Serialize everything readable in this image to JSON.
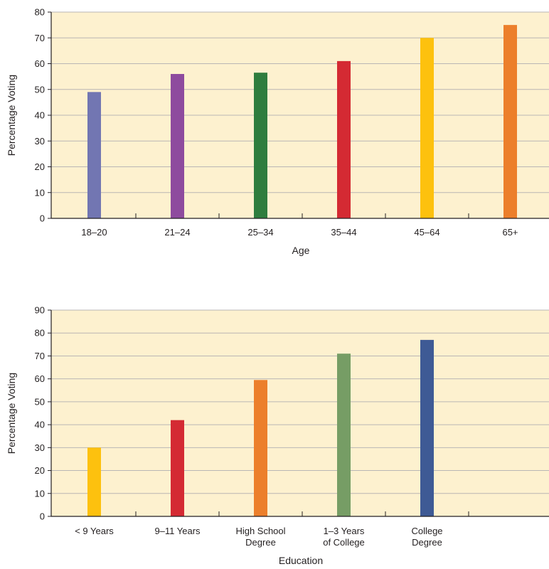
{
  "chart_data": [
    {
      "type": "bar",
      "title": "",
      "xlabel": "Age",
      "ylabel": "Percentage Voting",
      "ylim": [
        0,
        80
      ],
      "yticks": [
        0,
        10,
        20,
        30,
        40,
        50,
        60,
        70,
        80
      ],
      "grid": true,
      "categories": [
        "18–20",
        "21–24",
        "25–34",
        "35–44",
        "45–64",
        "65+"
      ],
      "values": [
        49,
        56,
        56.5,
        61,
        70,
        75
      ],
      "colors": [
        "#7276b2",
        "#8e4b9e",
        "#2e7d3e",
        "#d42a33",
        "#fdc10e",
        "#ec7f2b"
      ],
      "background": "#fdf1cf",
      "gridline_color": "#b9b6b4"
    },
    {
      "type": "bar",
      "title": "",
      "xlabel": "Education",
      "ylabel": "Percentage Voting",
      "ylim": [
        0,
        90
      ],
      "yticks": [
        0,
        10,
        20,
        30,
        40,
        50,
        60,
        70,
        80,
        90
      ],
      "grid": true,
      "categories": [
        [
          "< 9 Years"
        ],
        [
          "9–11 Years"
        ],
        [
          "High School",
          "Degree"
        ],
        [
          "1–3 Years",
          "of College"
        ],
        [
          "College",
          "Degree"
        ]
      ],
      "values": [
        30,
        42,
        59.5,
        71,
        77
      ],
      "colors": [
        "#fdc10e",
        "#d42a33",
        "#ec7f2b",
        "#769d65",
        "#3e5a95"
      ],
      "background": "#fdf1cf",
      "gridline_color": "#b9b6b4"
    }
  ]
}
